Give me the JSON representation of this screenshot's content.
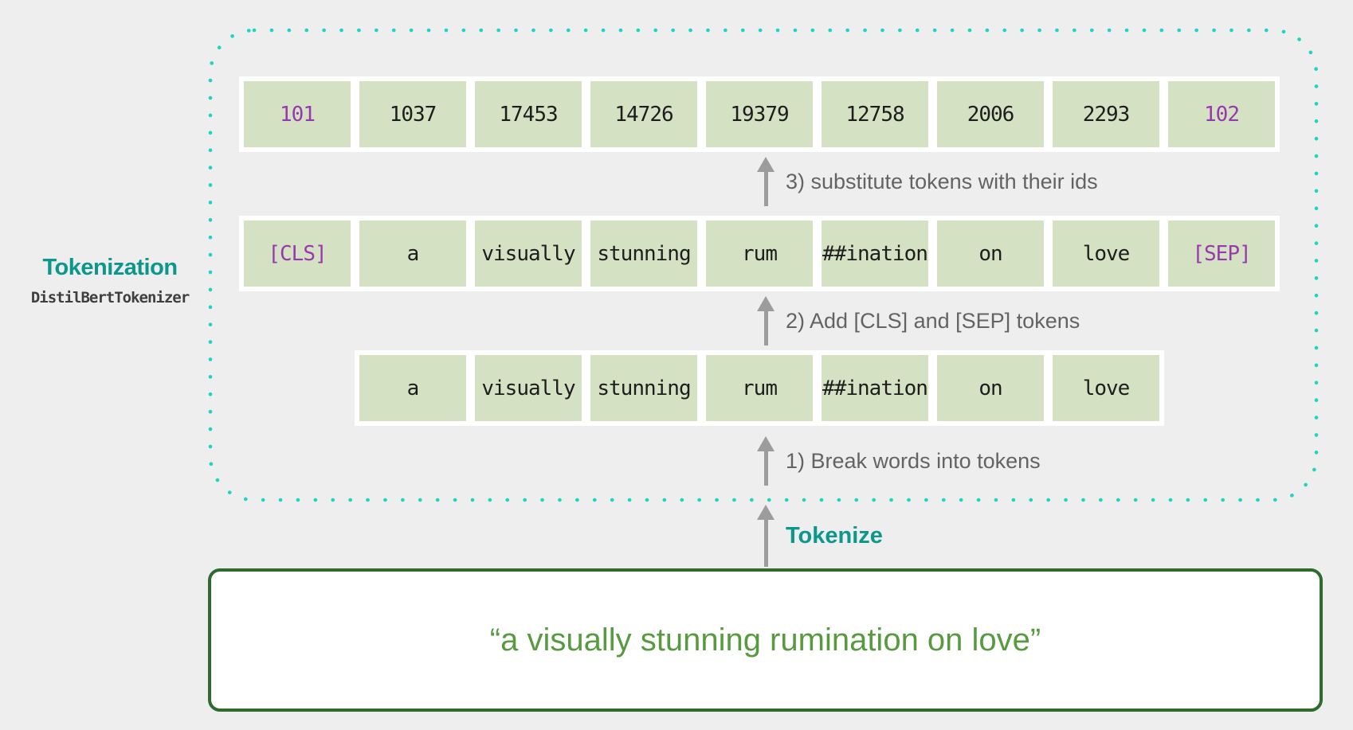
{
  "colors": {
    "background": "#eeeeee",
    "cell_green": "#d5e1c3",
    "cell_text": "#1d1d1d",
    "special_purple": "#9739ae",
    "teal_accent": "#0d978c",
    "dotted_border_teal": "#1ed4c4",
    "arrow_gray": "#9c9c9c",
    "step_label_gray": "#636363",
    "subtitle_gray": "#3e3e3e",
    "box_border_green": "#2e6b2f",
    "sentence_green": "#579a40"
  },
  "section": {
    "title": "Tokenization",
    "subtitle": "DistilBertTokenizer"
  },
  "rows": {
    "ids": {
      "cells": [
        "101",
        "1037",
        "17453",
        "14726",
        "19379",
        "12758",
        "2006",
        "2293",
        "102"
      ],
      "special_indices": [
        0,
        8
      ]
    },
    "tokens_with_special": {
      "cells": [
        "[CLS]",
        "a",
        "visually",
        "stunning",
        "rum",
        "##ination",
        "on",
        "love",
        "[SEP]"
      ],
      "special_indices": [
        0,
        8
      ]
    },
    "word_tokens": {
      "cells": [
        "a",
        "visually",
        "stunning",
        "rum",
        "##ination",
        "on",
        "love"
      ],
      "special_indices": []
    }
  },
  "steps": {
    "step3": "3) substitute tokens with their ids",
    "step2": "2) Add [CLS] and [SEP] tokens",
    "step1": "1) Break words into tokens"
  },
  "tokenize": {
    "label": "Tokenize"
  },
  "input": {
    "sentence": "“a visually stunning rumination on love”"
  }
}
